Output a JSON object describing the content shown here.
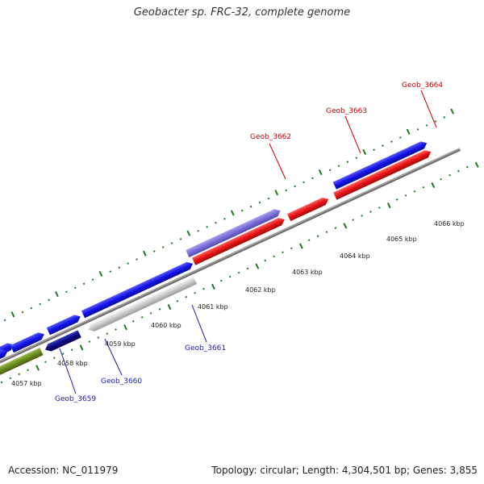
{
  "title": "Geobacter sp. FRC-32, complete genome",
  "footer": {
    "accession": "Accession: NC_011979",
    "summary": "Topology: circular; Length: 4,304,501 bp; Genes: 3,855"
  },
  "ticks": [
    "4057 kbp",
    "4058 kbp",
    "4059 kbp",
    "4060 kbp",
    "4061 kbp",
    "4062 kbp",
    "4063 kbp",
    "4064 kbp",
    "4065 kbp",
    "4066 kbp"
  ],
  "top_labels": [
    "Geob_3662",
    "Geob_3663",
    "Geob_3664"
  ],
  "bottom_labels": [
    "Geob_3659",
    "Geob_3660",
    "Geob_3661"
  ],
  "colors": {
    "forward_blue": "#1414e6",
    "forward_red": "#e61414",
    "lavender": "#7a6fd6",
    "pink": "#f08a8a",
    "olive": "#6a8a1e",
    "navy": "#0a0a80",
    "grey_gene": "#c8c8c8",
    "backbone": "#888888",
    "tick_green": "#1d7a1d"
  }
}
